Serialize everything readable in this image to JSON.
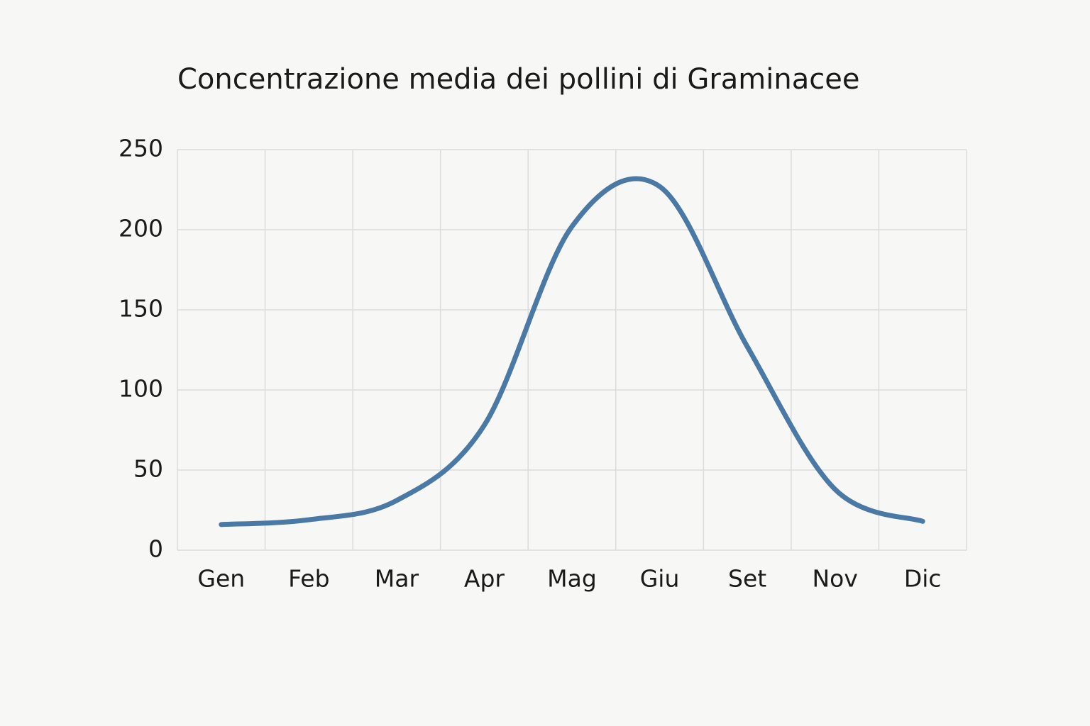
{
  "chart_data": {
    "type": "line",
    "title": "Concentrazione media dei pollini di Graminacee",
    "categories": [
      "Gen",
      "Feb",
      "Mar",
      "Apr",
      "Mag",
      "Giu",
      "Set",
      "Nov",
      "Dic"
    ],
    "series": [
      {
        "name": "Graminacee",
        "color": "#4a79a5",
        "values": [
          16,
          19,
          31,
          78,
          202,
          227,
          127,
          38,
          18
        ]
      }
    ],
    "ylim": [
      0,
      250
    ],
    "yticks": [
      0,
      50,
      100,
      150,
      200,
      250
    ],
    "grid": true
  }
}
